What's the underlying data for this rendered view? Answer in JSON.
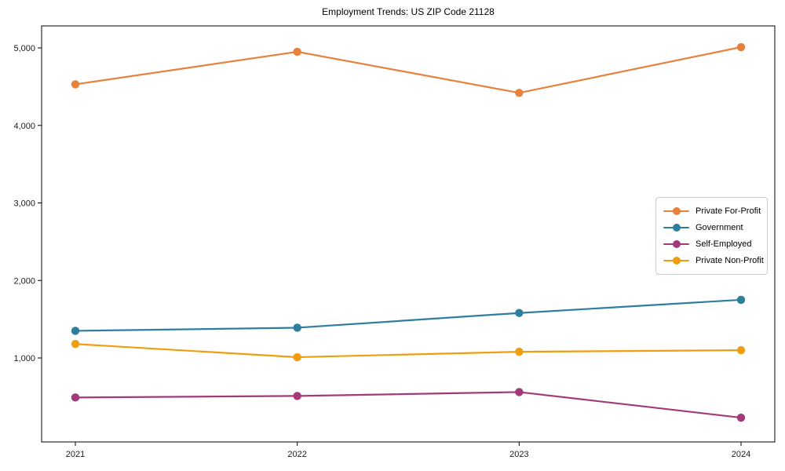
{
  "chart_data": {
    "type": "line",
    "title": "Employment Trends: US ZIP Code 21128",
    "xlabel": "",
    "ylabel": "",
    "categories": [
      "2021",
      "2022",
      "2023",
      "2024"
    ],
    "x": [
      2021,
      2022,
      2023,
      2024
    ],
    "series": [
      {
        "name": "Private For-Profit",
        "color": "#e8813c",
        "values": [
          4530,
          4950,
          4420,
          5010
        ]
      },
      {
        "name": "Government",
        "color": "#2e7f9e",
        "values": [
          1350,
          1390,
          1580,
          1750
        ]
      },
      {
        "name": "Self-Employed",
        "color": "#a23a7a",
        "values": [
          490,
          510,
          560,
          230
        ]
      },
      {
        "name": "Private Non-Profit",
        "color": "#f09d10",
        "values": [
          1180,
          1010,
          1080,
          1100
        ]
      }
    ],
    "yticks": [
      1000,
      2000,
      3000,
      4000,
      5000
    ],
    "ytick_labels": [
      "1,000",
      "2,000",
      "3,000",
      "4,000",
      "5,000"
    ],
    "ylim": [
      -85,
      5285
    ],
    "grid": false,
    "legend_position": "center-right",
    "axis_color": "#000000",
    "tick_label_color": "#1a1a1a"
  }
}
